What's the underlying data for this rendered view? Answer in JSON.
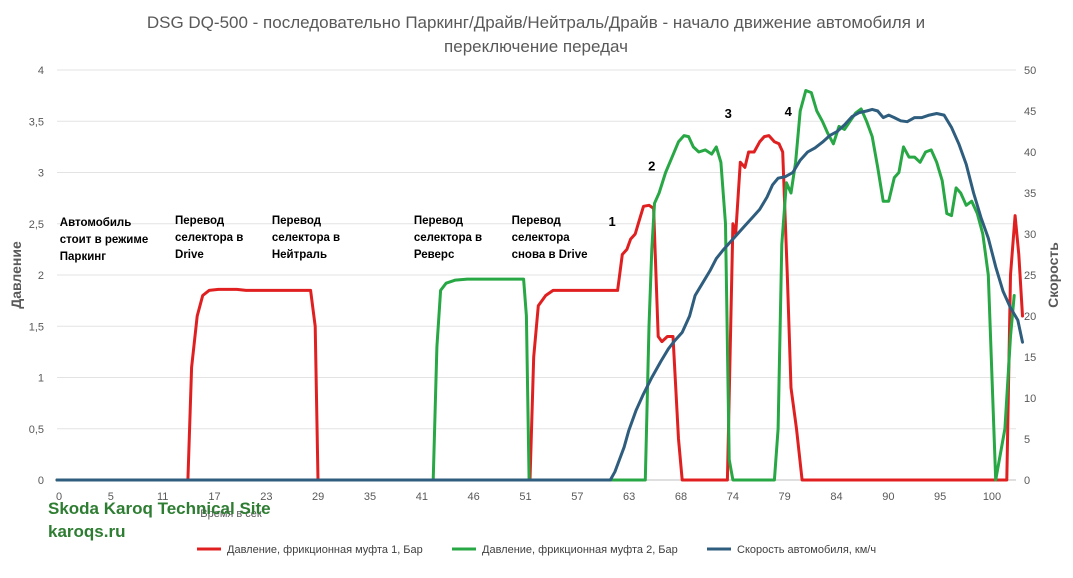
{
  "chart_data": {
    "type": "line",
    "title": "DSG DQ-500  - последовательно Паркинг/Драйв/Нейтраль/Драйв - начало движение автомобиля и переключение передач",
    "xlabel": "Время в сек",
    "ylabel": "Давление",
    "y2label": "Скорость",
    "xlim": [
      0,
      104
    ],
    "ylim": [
      0,
      4
    ],
    "y2lim": [
      0,
      50
    ],
    "x_ticks": [
      "0",
      "5",
      "11",
      "17",
      "23",
      "29",
      "35",
      "41",
      "46",
      "51",
      "57",
      "63",
      "68",
      "74",
      "79",
      "84",
      "90",
      "95",
      "100"
    ],
    "y_ticks": [
      "0",
      "0,5",
      "1",
      "1,5",
      "2",
      "2,5",
      "3",
      "3,5",
      "4"
    ],
    "y2_ticks": [
      "0",
      "5",
      "10",
      "15",
      "20",
      "25",
      "30",
      "35",
      "40",
      "45",
      "50"
    ],
    "grid": true,
    "legend_position": "bottom",
    "series": [
      {
        "name": "Давление, фрикционная муфта 1, Бар",
        "color": "#e02020",
        "axis": "left",
        "points": [
          [
            0,
            0
          ],
          [
            14.2,
            0
          ],
          [
            14.6,
            1.1
          ],
          [
            15.2,
            1.6
          ],
          [
            15.8,
            1.8
          ],
          [
            16.5,
            1.85
          ],
          [
            17.5,
            1.86
          ],
          [
            19.5,
            1.86
          ],
          [
            20.5,
            1.85
          ],
          [
            27.5,
            1.85
          ],
          [
            28,
            1.5
          ],
          [
            28.3,
            0
          ],
          [
            51.3,
            0
          ],
          [
            51.7,
            1.2
          ],
          [
            52.2,
            1.7
          ],
          [
            53,
            1.8
          ],
          [
            53.8,
            1.85
          ],
          [
            60.8,
            1.85
          ],
          [
            61.3,
            2.2
          ],
          [
            61.8,
            2.25
          ],
          [
            62.2,
            2.35
          ],
          [
            62.7,
            2.4
          ],
          [
            63.2,
            2.55
          ],
          [
            63.6,
            2.67
          ],
          [
            64.2,
            2.68
          ],
          [
            64.7,
            2.65
          ],
          [
            65.2,
            1.4
          ],
          [
            65.6,
            1.35
          ],
          [
            66.2,
            1.4
          ],
          [
            66.8,
            1.4
          ],
          [
            67.4,
            0.4
          ],
          [
            67.8,
            0
          ],
          [
            72.7,
            0
          ],
          [
            73.3,
            2.5
          ],
          [
            73.6,
            2.4
          ],
          [
            74.1,
            3.1
          ],
          [
            74.6,
            3.05
          ],
          [
            75,
            3.2
          ],
          [
            75.6,
            3.2
          ],
          [
            76.2,
            3.3
          ],
          [
            76.7,
            3.35
          ],
          [
            77.2,
            3.36
          ],
          [
            77.8,
            3.3
          ],
          [
            78.3,
            3.28
          ],
          [
            78.7,
            3.2
          ],
          [
            79.2,
            2.0
          ],
          [
            79.6,
            0.9
          ],
          [
            80.2,
            0.5
          ],
          [
            80.8,
            0
          ],
          [
            103,
            0
          ],
          [
            103.4,
            2.0
          ],
          [
            103.9,
            2.58
          ],
          [
            104.3,
            2.2
          ],
          [
            104.7,
            1.6
          ]
        ]
      },
      {
        "name": "Давление, фрикционная муфта 2, Бар",
        "color": "#28a745",
        "axis": "left",
        "points": [
          [
            0,
            0
          ],
          [
            40.8,
            0
          ],
          [
            41.2,
            1.3
          ],
          [
            41.6,
            1.85
          ],
          [
            42.2,
            1.92
          ],
          [
            43.2,
            1.95
          ],
          [
            44.5,
            1.96
          ],
          [
            50.6,
            1.96
          ],
          [
            50.9,
            1.6
          ],
          [
            51.2,
            0
          ],
          [
            63.8,
            0
          ],
          [
            64.2,
            1.5
          ],
          [
            64.5,
            2.25
          ],
          [
            64.8,
            2.7
          ],
          [
            65.3,
            2.8
          ],
          [
            66,
            3.0
          ],
          [
            66.7,
            3.15
          ],
          [
            67.4,
            3.3
          ],
          [
            68,
            3.36
          ],
          [
            68.5,
            3.35
          ],
          [
            69,
            3.25
          ],
          [
            69.6,
            3.2
          ],
          [
            70.3,
            3.22
          ],
          [
            71,
            3.18
          ],
          [
            71.5,
            3.25
          ],
          [
            72,
            3.1
          ],
          [
            72.5,
            2.5
          ],
          [
            72.9,
            0.2
          ],
          [
            73.3,
            0
          ],
          [
            77.8,
            0
          ],
          [
            78.2,
            0.5
          ],
          [
            78.6,
            2.3
          ],
          [
            79.1,
            2.9
          ],
          [
            79.6,
            2.8
          ],
          [
            80.1,
            3.1
          ],
          [
            80.6,
            3.6
          ],
          [
            81.2,
            3.8
          ],
          [
            81.8,
            3.78
          ],
          [
            82.4,
            3.6
          ],
          [
            83,
            3.5
          ],
          [
            83.6,
            3.38
          ],
          [
            84.2,
            3.28
          ],
          [
            84.8,
            3.45
          ],
          [
            85.4,
            3.42
          ],
          [
            86,
            3.5
          ],
          [
            86.6,
            3.58
          ],
          [
            87.2,
            3.62
          ],
          [
            87.8,
            3.5
          ],
          [
            88.4,
            3.35
          ],
          [
            89,
            3.05
          ],
          [
            89.6,
            2.72
          ],
          [
            90.2,
            2.72
          ],
          [
            90.8,
            2.95
          ],
          [
            91.3,
            3.0
          ],
          [
            91.8,
            3.25
          ],
          [
            92.4,
            3.15
          ],
          [
            93,
            3.15
          ],
          [
            93.6,
            3.1
          ],
          [
            94.2,
            3.2
          ],
          [
            94.8,
            3.22
          ],
          [
            95.4,
            3.1
          ],
          [
            96,
            2.92
          ],
          [
            96.5,
            2.6
          ],
          [
            97,
            2.58
          ],
          [
            97.5,
            2.85
          ],
          [
            98,
            2.8
          ],
          [
            98.6,
            2.68
          ],
          [
            99.2,
            2.72
          ],
          [
            99.8,
            2.6
          ],
          [
            100.4,
            2.4
          ],
          [
            101,
            2.0
          ],
          [
            101.8,
            0
          ],
          [
            102.8,
            0.5
          ],
          [
            103.4,
            1.4
          ],
          [
            103.8,
            1.8
          ]
        ]
      },
      {
        "name": "Скорость автомобиля, км/ч",
        "color": "#2e5d7e",
        "axis": "right",
        "points": [
          [
            0,
            0
          ],
          [
            60,
            0
          ],
          [
            60.5,
            1
          ],
          [
            61,
            2.5
          ],
          [
            61.5,
            4
          ],
          [
            62,
            6
          ],
          [
            62.8,
            8.5
          ],
          [
            63.6,
            10.5
          ],
          [
            64.5,
            12.5
          ],
          [
            65.5,
            14.5
          ],
          [
            66.3,
            16
          ],
          [
            67,
            17
          ],
          [
            67.8,
            18
          ],
          [
            68.6,
            20
          ],
          [
            69.2,
            22.5
          ],
          [
            70,
            24
          ],
          [
            70.8,
            25.5
          ],
          [
            71.5,
            27
          ],
          [
            72.2,
            28
          ],
          [
            73,
            29
          ],
          [
            73.8,
            30
          ],
          [
            74.6,
            31
          ],
          [
            75.4,
            32
          ],
          [
            76.2,
            33
          ],
          [
            77,
            34.5
          ],
          [
            77.6,
            36
          ],
          [
            78.2,
            36.8
          ],
          [
            79,
            37
          ],
          [
            79.8,
            37.5
          ],
          [
            80.6,
            39
          ],
          [
            81.4,
            40
          ],
          [
            82.2,
            40.5
          ],
          [
            83,
            41.2
          ],
          [
            83.8,
            42
          ],
          [
            84.6,
            42.5
          ],
          [
            85.4,
            43.3
          ],
          [
            86.2,
            44.3
          ],
          [
            87,
            44.8
          ],
          [
            87.8,
            45
          ],
          [
            88.4,
            45.2
          ],
          [
            89,
            45
          ],
          [
            89.6,
            44.2
          ],
          [
            90.2,
            44.5
          ],
          [
            90.8,
            44.2
          ],
          [
            91.5,
            43.8
          ],
          [
            92.2,
            43.7
          ],
          [
            93,
            44.2
          ],
          [
            93.8,
            44.2
          ],
          [
            94.6,
            44.5
          ],
          [
            95.4,
            44.7
          ],
          [
            96.2,
            44.5
          ],
          [
            97,
            43
          ],
          [
            97.8,
            41
          ],
          [
            98.6,
            38.5
          ],
          [
            99.4,
            35
          ],
          [
            100.2,
            32
          ],
          [
            101,
            29.5
          ],
          [
            101.8,
            26
          ],
          [
            102.6,
            23
          ],
          [
            103.4,
            21
          ],
          [
            104.2,
            19.5
          ],
          [
            104.7,
            16.8
          ]
        ]
      }
    ],
    "annotations": [
      {
        "x": 0.3,
        "y": 2.48,
        "lines": [
          "Автомобиль",
          "стоит в режиме",
          "Паркинг"
        ]
      },
      {
        "x": 12.8,
        "y": 2.5,
        "lines": [
          "Перевод",
          "селектора в",
          "Drive"
        ]
      },
      {
        "x": 23.3,
        "y": 2.5,
        "lines": [
          "Перевод",
          "селектора в",
          "Нейтраль"
        ]
      },
      {
        "x": 38.7,
        "y": 2.5,
        "lines": [
          "Перевод",
          "селектора в",
          "Реверс"
        ]
      },
      {
        "x": 49.3,
        "y": 2.5,
        "lines": [
          "Перевод",
          "селектора",
          "снова в Drive"
        ]
      }
    ],
    "number_labels": [
      {
        "text": "1",
        "x": 60.2,
        "y": 2.48
      },
      {
        "text": "2",
        "x": 64.5,
        "y": 3.02
      },
      {
        "text": "3",
        "x": 72.8,
        "y": 3.53
      },
      {
        "text": "4",
        "x": 79.3,
        "y": 3.55
      }
    ]
  },
  "watermark": {
    "line1": "Skoda Karoq Technical Site",
    "line2": "karoqs.ru"
  }
}
